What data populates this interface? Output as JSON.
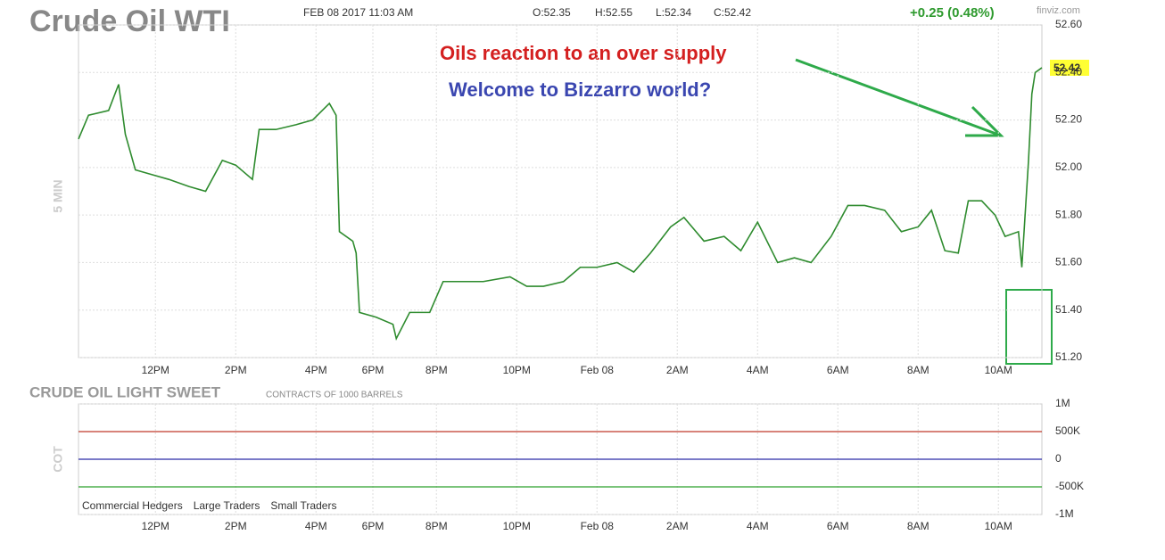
{
  "chart_data": [
    {
      "type": "line",
      "title": "Crude Oil WTI",
      "timestamp": "FEB 08 2017 11:03 AM",
      "open": "O:52.35",
      "high": "H:52.55",
      "low": "L:52.34",
      "close": "C:52.42",
      "change": "+0.25 (0.48%)",
      "source": "finviz.com",
      "ylabel": "5 MIN",
      "annotations": [
        "Oils reaction to an over supply",
        "Welcome to Bizzarro world?"
      ],
      "price_tag": "52.42",
      "xlim": [
        0,
        288
      ],
      "xticks": [
        {
          "value": 23,
          "label": "12PM"
        },
        {
          "value": 47,
          "label": "2PM"
        },
        {
          "value": 71,
          "label": "4PM"
        },
        {
          "value": 88,
          "label": "6PM"
        },
        {
          "value": 107,
          "label": "8PM"
        },
        {
          "value": 131,
          "label": "10PM"
        },
        {
          "value": 155,
          "label": "Feb 08"
        },
        {
          "value": 179,
          "label": "2AM"
        },
        {
          "value": 203,
          "label": "4AM"
        },
        {
          "value": 227,
          "label": "6AM"
        },
        {
          "value": 251,
          "label": "8AM"
        },
        {
          "value": 275,
          "label": "10AM"
        }
      ],
      "ylim": [
        51.2,
        52.6
      ],
      "yticks": [
        {
          "value": 51.2,
          "label": "51.20"
        },
        {
          "value": 51.4,
          "label": "51.40"
        },
        {
          "value": 51.6,
          "label": "51.60"
        },
        {
          "value": 51.8,
          "label": "51.80"
        },
        {
          "value": 52.0,
          "label": "52.00"
        },
        {
          "value": 52.2,
          "label": "52.20"
        },
        {
          "value": 52.4,
          "label": "52.40"
        },
        {
          "value": 52.6,
          "label": "52.60"
        }
      ],
      "grid": true,
      "color": "#2e8b2e",
      "x": [
        0,
        3,
        9,
        12,
        14,
        17,
        22,
        27,
        33,
        38,
        43,
        47,
        52,
        54,
        59,
        65,
        70,
        75,
        77,
        78,
        82,
        83,
        84,
        89,
        94,
        95,
        99,
        105,
        109,
        115,
        121,
        129,
        134,
        139,
        145,
        150,
        155,
        161,
        166,
        171,
        177,
        181,
        187,
        193,
        198,
        203,
        209,
        214,
        219,
        225,
        230,
        235,
        241,
        246,
        251,
        255,
        259,
        263,
        266,
        270,
        274,
        277,
        281,
        282,
        284,
        285,
        286,
        288
      ],
      "values": [
        52.12,
        52.22,
        52.24,
        52.35,
        52.14,
        51.99,
        51.97,
        51.95,
        51.92,
        51.9,
        52.03,
        52.01,
        51.95,
        52.16,
        52.16,
        52.18,
        52.2,
        52.27,
        52.22,
        51.73,
        51.69,
        51.64,
        51.39,
        51.37,
        51.34,
        51.28,
        51.39,
        51.39,
        51.52,
        51.52,
        51.52,
        51.54,
        51.5,
        51.5,
        51.52,
        51.58,
        51.58,
        51.6,
        51.56,
        51.64,
        51.75,
        51.79,
        51.69,
        51.71,
        51.65,
        51.77,
        51.6,
        51.62,
        51.6,
        51.71,
        51.84,
        51.84,
        51.82,
        51.73,
        51.75,
        51.82,
        51.65,
        51.64,
        51.86,
        51.86,
        51.8,
        51.71,
        51.73,
        51.58,
        52.03,
        52.31,
        52.4,
        52.42
      ]
    },
    {
      "type": "hline",
      "title": "CRUDE OIL LIGHT SWEET",
      "subtitle": "CONTRACTS OF 1000 BARRELS",
      "ylabel": "COT",
      "ylim": [
        -1000000,
        1000000
      ],
      "yticks": [
        {
          "value": 1000000,
          "label": "1M"
        },
        {
          "value": 500000,
          "label": "500K"
        },
        0,
        {
          "value": -500000,
          "label": "-500K"
        },
        {
          "value": -1000000,
          "label": "-1M"
        }
      ],
      "grid": true,
      "series": [
        {
          "name": "Commercial Hedgers",
          "color": "#2ca02c",
          "values": [
            -500000
          ]
        },
        {
          "name": "Large Traders",
          "color": "#c0392b",
          "values": [
            500000
          ]
        },
        {
          "name": "Small Traders",
          "color": "#2a2aa8",
          "values": [
            0
          ]
        }
      ]
    }
  ]
}
